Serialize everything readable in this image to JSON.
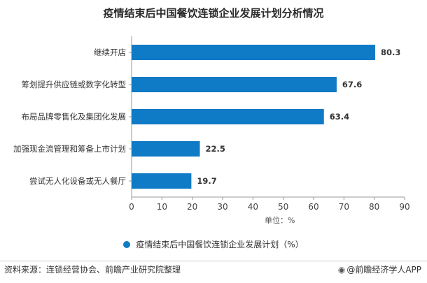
{
  "title": "疫情结束后中国餐饮连锁企业发展计划分析情况",
  "chart_data": {
    "type": "bar",
    "orientation": "horizontal",
    "title": "疫情结束后中国餐饮连锁企业发展计划分析情况",
    "categories": [
      "继续开店",
      "筹划提升供应链或数字化转型",
      "布局品牌零售化及集团化发展",
      "加强现金流管理和筹备上市计划",
      "尝试无人化设备或无人餐厅"
    ],
    "series": [
      {
        "name": "疫情结束后中国餐饮连锁企业发展计划（%）",
        "values": [
          80.3,
          67.6,
          63.4,
          22.5,
          19.7
        ]
      }
    ],
    "value_labels": [
      "80.3",
      "67.6",
      "63.4",
      "22.5",
      "19.7"
    ],
    "xlim": [
      0,
      90
    ],
    "xticks": [
      0,
      10,
      20,
      30,
      40,
      50,
      60,
      70,
      80,
      90
    ],
    "xlabel": "单位：%",
    "grid": false,
    "legend_position": "bottom",
    "colors": {
      "bar": "#0f7ac6",
      "axis": "#999999"
    }
  },
  "legend_label": "疫情结束后中国餐饮连锁企业发展计划（%）",
  "unit_label": "单位：%",
  "footer": {
    "source": "资料来源：连锁经营协会、前瞻产业研究院整理",
    "brand_icon": "camera-icon",
    "brand": "@前瞻经济学人APP"
  }
}
